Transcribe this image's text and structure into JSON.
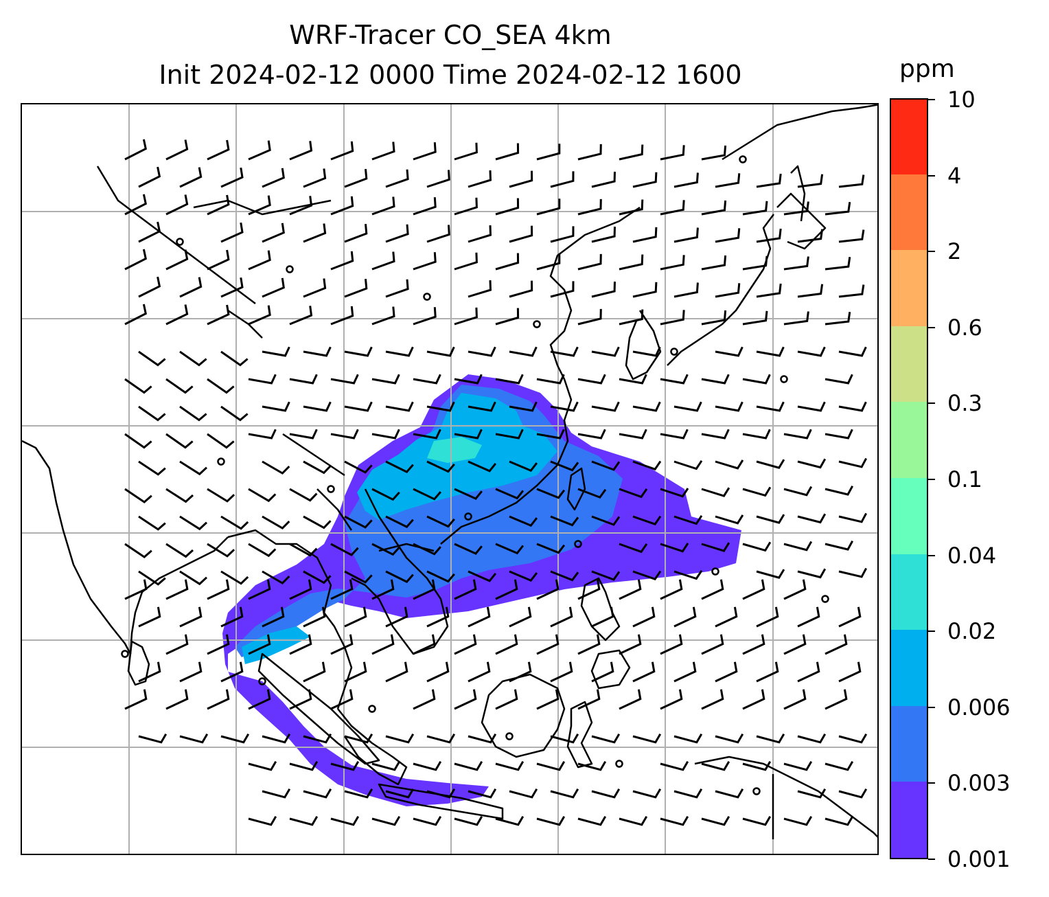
{
  "title": {
    "line1": "WRF-Tracer CO_SEA 4km",
    "line2": "Init 2024-02-12 0000 Time 2024-02-12 1600"
  },
  "colorbar": {
    "unit": "ppm",
    "levels": [
      "0.001",
      "0.003",
      "0.006",
      "0.02",
      "0.04",
      "0.1",
      "0.3",
      "0.6",
      "2",
      "4",
      "10"
    ],
    "colors": [
      "#6633ff",
      "#3377f5",
      "#00b0ee",
      "#2fe0d6",
      "#66ffbb",
      "#99f799",
      "#cce088",
      "#ffb060",
      "#ff7a3a",
      "#ff2a14"
    ]
  },
  "map": {
    "background": "#ffffff",
    "coastline_color": "#000000",
    "gridline_color": "#b0b0b0",
    "barb_color": "#000000"
  }
}
